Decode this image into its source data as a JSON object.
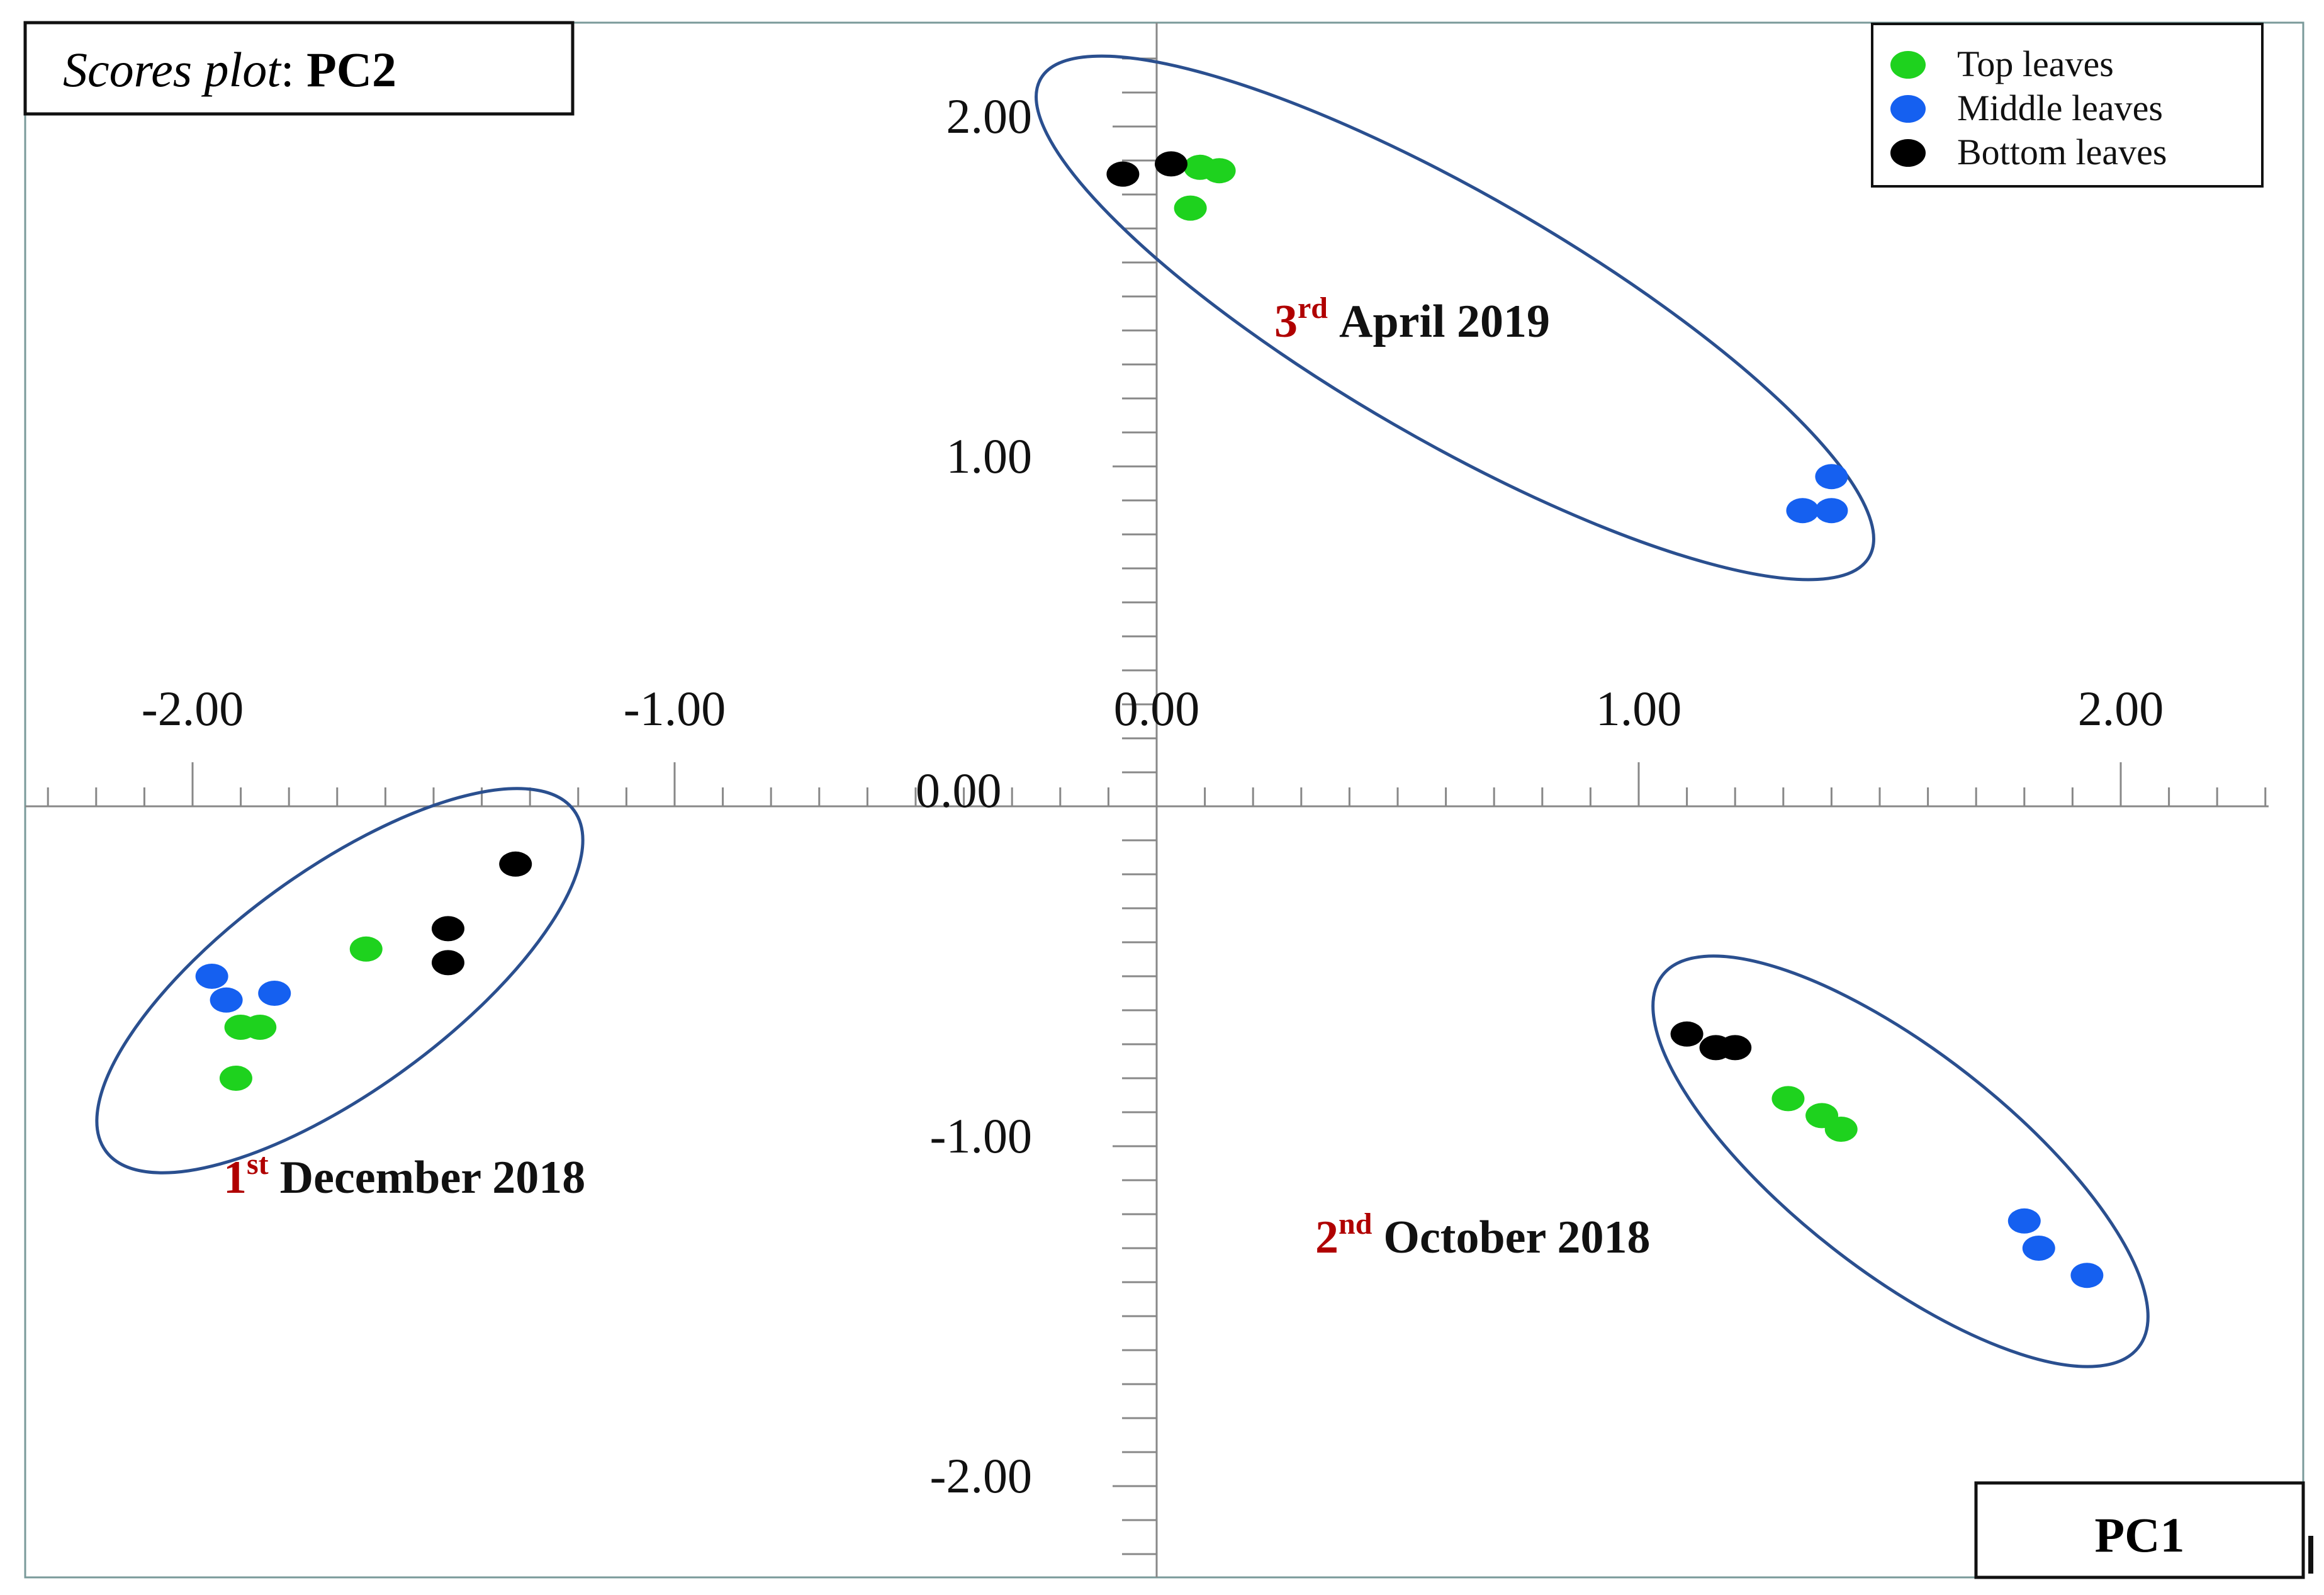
{
  "chart_data": {
    "type": "scatter",
    "title_prefix": "Scores plot",
    "title_suffix": "PC2",
    "x_axis_label": "PC1",
    "xlim": [
      -2.35,
      2.35
    ],
    "ylim": [
      -2.3,
      2.3
    ],
    "x_ticks": [
      -2.0,
      -1.0,
      0.0,
      1.0,
      2.0
    ],
    "y_ticks": [
      -2.0,
      -1.0,
      1.0,
      2.0
    ],
    "x_tick_labels": [
      "-2.00",
      "-1.00",
      "0.00",
      "1.00",
      "2.00"
    ],
    "y_tick_labels": [
      "-2.00",
      "-1.00",
      "1.00",
      "2.00"
    ],
    "origin_label": "0.00",
    "grid": false,
    "legend_position": "top-right",
    "series": [
      {
        "name": "Top leaves",
        "color": "#1ed21e",
        "points": [
          [
            0.09,
            1.88
          ],
          [
            0.13,
            1.87
          ],
          [
            0.07,
            1.76
          ],
          [
            1.31,
            -0.86
          ],
          [
            1.38,
            -0.91
          ],
          [
            1.42,
            -0.95
          ],
          [
            -1.9,
            -0.65
          ],
          [
            -1.86,
            -0.65
          ],
          [
            -1.91,
            -0.8
          ],
          [
            -1.64,
            -0.42
          ]
        ]
      },
      {
        "name": "Middle leaves",
        "color": "#1560f0",
        "points": [
          [
            1.4,
            0.97
          ],
          [
            1.34,
            0.87
          ],
          [
            1.4,
            0.87
          ],
          [
            1.8,
            -1.22
          ],
          [
            1.83,
            -1.3
          ],
          [
            1.93,
            -1.38
          ],
          [
            -1.96,
            -0.5
          ],
          [
            -1.93,
            -0.57
          ],
          [
            -1.83,
            -0.55
          ]
        ]
      },
      {
        "name": "Bottom leaves",
        "color": "#000000",
        "points": [
          [
            -0.07,
            1.86
          ],
          [
            0.03,
            1.89
          ],
          [
            1.1,
            -0.67
          ],
          [
            1.16,
            -0.71
          ],
          [
            1.2,
            -0.71
          ],
          [
            -1.33,
            -0.17
          ],
          [
            -1.47,
            -0.36
          ],
          [
            -1.47,
            -0.46
          ]
        ]
      }
    ],
    "annotations": [
      {
        "ordinal": "3",
        "suffix": "rd",
        "text": "April 2019"
      },
      {
        "ordinal": "1",
        "suffix": "st",
        "text": "December 2018"
      },
      {
        "ordinal": "2",
        "suffix": "nd",
        "text": "October 2018"
      }
    ]
  }
}
